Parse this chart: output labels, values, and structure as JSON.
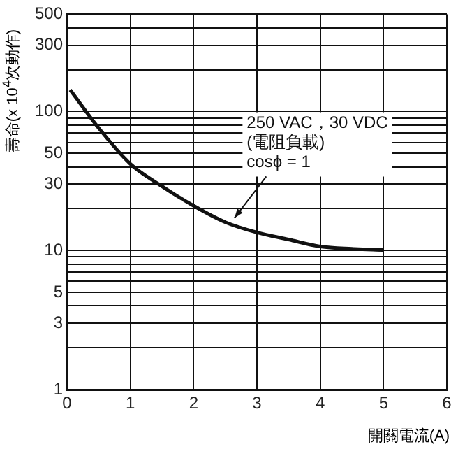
{
  "chart_data": {
    "type": "line",
    "ylabel": "壽命(x 10$^{4}$次動作)",
    "xlabel": "開關電流(A)",
    "x": [
      0.05,
      0.5,
      1,
      1.5,
      2,
      2.5,
      3,
      3.5,
      4,
      4.5,
      5
    ],
    "series": [
      {
        "color": "#111111",
        "values": [
          143,
          76,
          42,
          29,
          21,
          16,
          13.5,
          12,
          10.7,
          10.3,
          10.1
        ]
      }
    ],
    "xlim": [
      0,
      6
    ],
    "xticks": [
      0,
      1,
      2,
      3,
      4,
      5,
      6
    ],
    "ylim": [
      1,
      500
    ],
    "yticks": [
      1,
      {
        "value": 2,
        "label": null
      },
      3,
      {
        "value": 4,
        "label": null
      },
      5,
      {
        "value": 6,
        "label": null
      },
      {
        "value": 7,
        "label": null
      },
      {
        "value": 8,
        "label": null
      },
      {
        "value": 9,
        "label": null
      },
      10,
      {
        "value": 20,
        "label": null
      },
      30,
      {
        "value": 40,
        "label": null
      },
      50,
      {
        "value": 60,
        "label": null
      },
      {
        "value": 70,
        "label": null
      },
      {
        "value": 80,
        "label": null
      },
      {
        "value": 90,
        "label": null
      },
      100,
      {
        "value": 200,
        "label": null
      },
      300,
      {
        "value": 400,
        "label": null
      },
      500
    ],
    "log": "y",
    "grid": true,
    "legend": false,
    "marker": "none",
    "line_style": "solid",
    "annotations": [
      {
        "text": "250 VAC，30 VDC\n(電阻負載)\ncosϕ = 1",
        "x": 2.6,
        "y": 16
      }
    ]
  }
}
